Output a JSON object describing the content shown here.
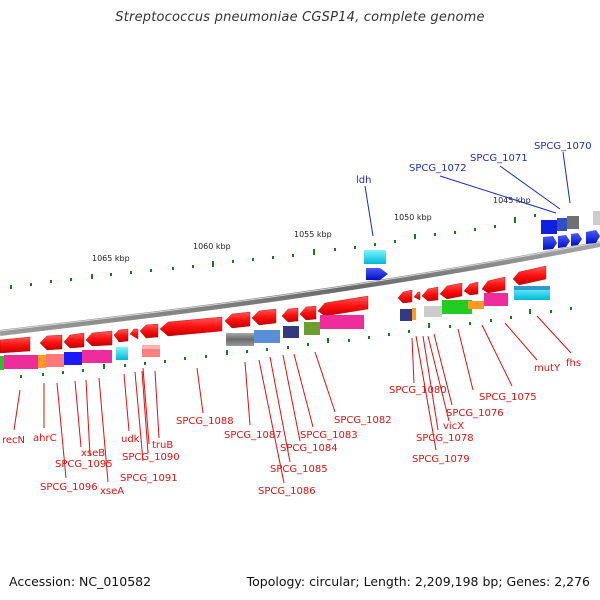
{
  "title": "Streptococcus pneumoniae CGSP14, complete genome",
  "footer": {
    "accession": "Accession: NC_010582",
    "summary": "Topology: circular; Length: 2,209,198 bp; Genes: 2,276"
  },
  "scale": {
    "ticks": [
      "1065 kbp",
      "1060 kbp",
      "1055 kbp",
      "1050 kbp",
      "1045 kbp"
    ]
  },
  "labels": {
    "red": [
      "recN",
      "ahrC",
      "SPCG_1096",
      "xseB",
      "SPCG_1095",
      "xseA",
      "udk",
      "SPCG_1091",
      "truB",
      "SPCG_1090",
      "SPCG_1088",
      "SPCG_1087",
      "SPCG_1086",
      "SPCG_1085",
      "SPCG_1084",
      "SPCG_1083",
      "SPCG_1082",
      "SPCG_1080",
      "SPCG_1079",
      "SPCG_1078",
      "vicX",
      "SPCG_1076",
      "SPCG_1075",
      "mutY",
      "fhs"
    ],
    "blue": [
      "ldh",
      "SPCG_1072",
      "SPCG_1071",
      "SPCG_1070"
    ]
  },
  "colors": {
    "gene": "#ff1010",
    "blue_gene": "#0a1ee0",
    "label_red": "#e01010",
    "label_blue": "#1a2fb8",
    "backbone": "#888888",
    "tick": "#1a7a1a"
  }
}
